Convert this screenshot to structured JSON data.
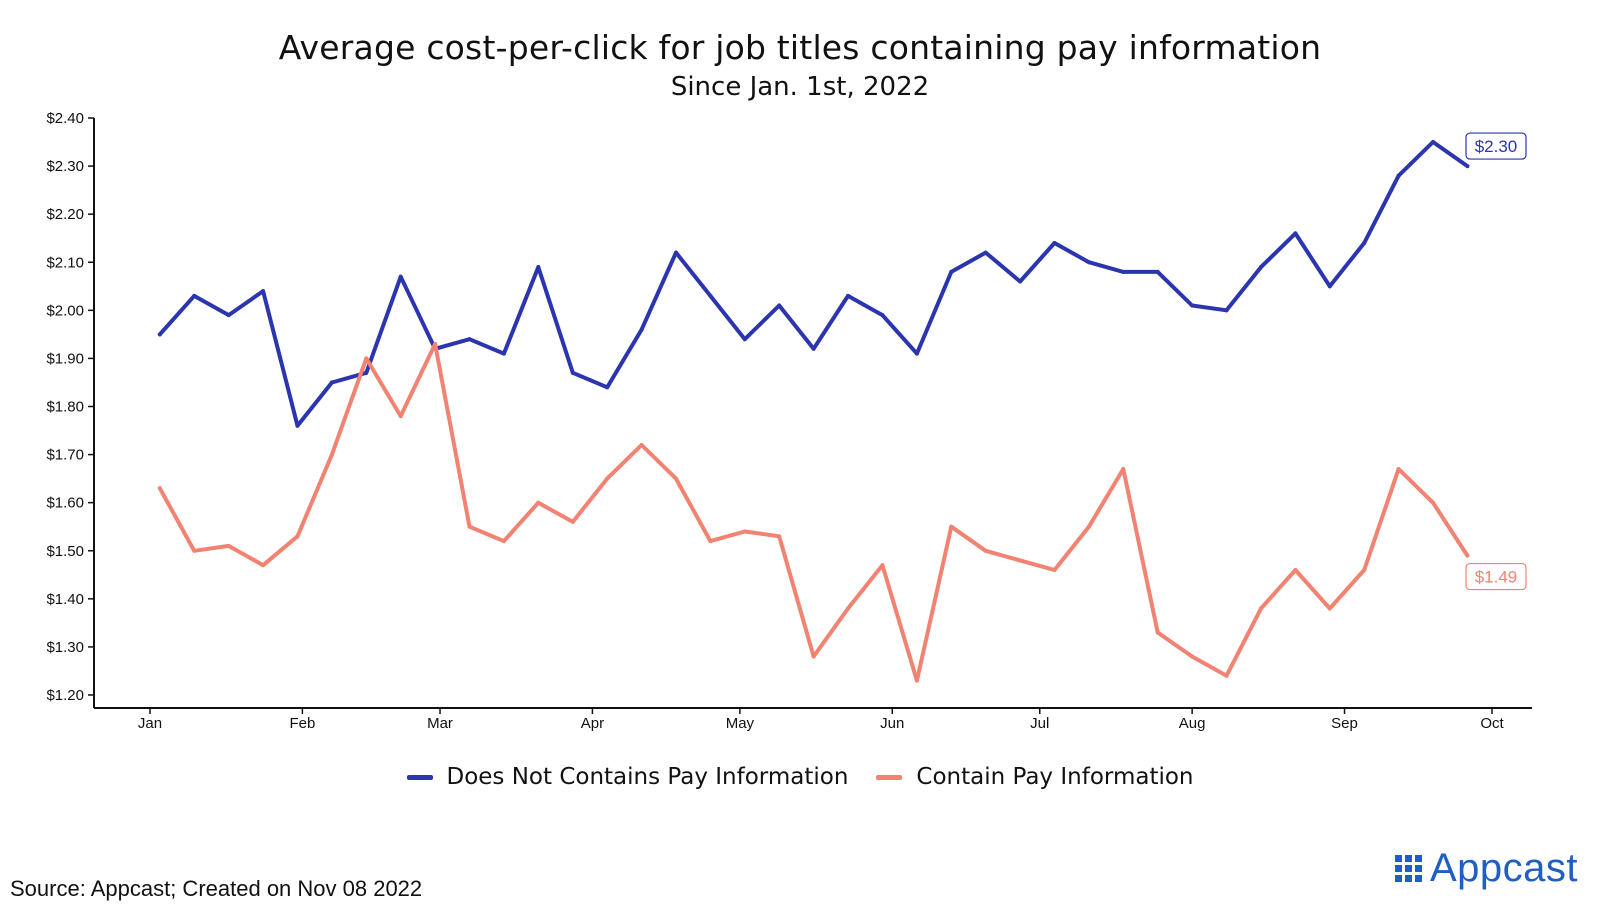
{
  "header": {
    "title": "Average cost-per-click for job titles containing pay information",
    "subtitle": "Since Jan. 1st, 2022"
  },
  "footer": {
    "source": "Source: Appcast; Created on Nov 08 2022",
    "logo_text": "Appcast"
  },
  "colors": {
    "series_blue": "#2b35b0",
    "series_salmon": "#f28272"
  },
  "chart_data": {
    "type": "line",
    "title": "Average cost-per-click for job titles containing pay information",
    "subtitle": "Since Jan. 1st, 2022",
    "xlabel": "",
    "ylabel": "",
    "ylim": [
      1.2,
      2.4
    ],
    "xlim": [
      "2022-01-01",
      "2022-10-01"
    ],
    "grid": false,
    "legend_position": "bottom",
    "x_tick_labels": [
      "Jan",
      "Feb",
      "Mar",
      "Apr",
      "May",
      "Jun",
      "Jul",
      "Aug",
      "Sep",
      "Oct"
    ],
    "x_tick_dates": [
      "2022-01-01",
      "2022-02-01",
      "2022-03-01",
      "2022-04-01",
      "2022-05-01",
      "2022-06-01",
      "2022-07-01",
      "2022-08-01",
      "2022-09-01",
      "2022-10-01"
    ],
    "y_tick_labels": [
      "$1.20",
      "$1.30",
      "$1.40",
      "$1.50",
      "$1.60",
      "$1.70",
      "$1.80",
      "$1.90",
      "$2.00",
      "$2.10",
      "$2.20",
      "$2.30",
      "$2.40"
    ],
    "y_tick_values": [
      1.2,
      1.3,
      1.4,
      1.5,
      1.6,
      1.7,
      1.8,
      1.9,
      2.0,
      2.1,
      2.2,
      2.3,
      2.4
    ],
    "x": [
      "2022-01-03",
      "2022-01-10",
      "2022-01-17",
      "2022-01-24",
      "2022-01-31",
      "2022-02-07",
      "2022-02-14",
      "2022-02-21",
      "2022-02-28",
      "2022-03-07",
      "2022-03-14",
      "2022-03-21",
      "2022-03-28",
      "2022-04-04",
      "2022-04-11",
      "2022-04-18",
      "2022-04-25",
      "2022-05-02",
      "2022-05-09",
      "2022-05-16",
      "2022-05-23",
      "2022-05-30",
      "2022-06-06",
      "2022-06-13",
      "2022-06-20",
      "2022-06-27",
      "2022-07-04",
      "2022-07-11",
      "2022-07-18",
      "2022-07-25",
      "2022-08-01",
      "2022-08-08",
      "2022-08-15",
      "2022-08-22",
      "2022-08-29",
      "2022-09-05",
      "2022-09-12",
      "2022-09-19",
      "2022-09-26"
    ],
    "series": [
      {
        "name": "Does Not Contains Pay Information",
        "color": "#2b35b0",
        "end_label": "$2.30",
        "values": [
          1.95,
          2.03,
          1.99,
          2.04,
          1.76,
          1.85,
          1.87,
          2.07,
          1.92,
          1.94,
          1.91,
          2.09,
          1.87,
          1.84,
          1.96,
          2.12,
          2.03,
          1.94,
          2.01,
          1.92,
          2.03,
          1.99,
          1.91,
          2.08,
          2.12,
          2.06,
          2.14,
          2.1,
          2.08,
          2.08,
          2.01,
          2.0,
          2.09,
          2.16,
          2.05,
          2.14,
          2.28,
          2.35,
          2.3
        ]
      },
      {
        "name": "Contain Pay Information",
        "color": "#f28272",
        "end_label": "$1.49",
        "values": [
          1.63,
          1.5,
          1.51,
          1.47,
          1.53,
          1.7,
          1.9,
          1.78,
          1.93,
          1.55,
          1.52,
          1.6,
          1.56,
          1.65,
          1.72,
          1.65,
          1.52,
          1.54,
          1.53,
          1.28,
          1.38,
          1.47,
          1.23,
          1.55,
          1.5,
          1.48,
          1.46,
          1.55,
          1.67,
          1.33,
          1.28,
          1.24,
          1.38,
          1.46,
          1.38,
          1.46,
          1.67,
          1.6,
          1.49
        ]
      }
    ]
  }
}
